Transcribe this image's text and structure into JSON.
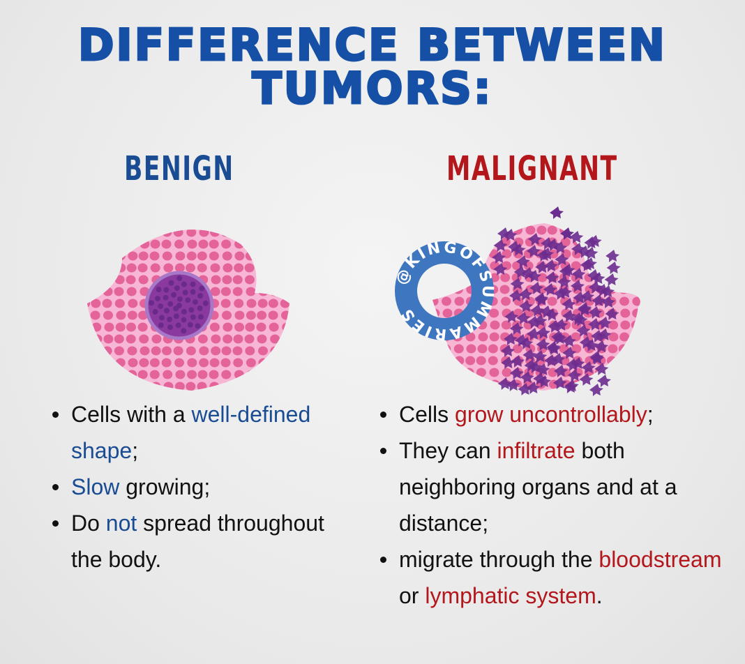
{
  "title": {
    "line1": "DIFFERENCE BETWEEN",
    "line2": "TUMORS:"
  },
  "colors": {
    "title": "#1650a6",
    "benign": "#1a4c94",
    "malignant": "#b3161b",
    "cell": "#e0568f",
    "tissue": "#f7b6d4",
    "nucleus": "#6a2a8c"
  },
  "benign": {
    "heading": "BENIGN",
    "bullets": [
      [
        {
          "t": "Cells with a "
        },
        {
          "t": "well-defined shape",
          "hl": true
        },
        {
          "t": ";"
        }
      ],
      [
        {
          "t": "Slow",
          "hl": true
        },
        {
          "t": " growing;"
        }
      ],
      [
        {
          "t": "Do "
        },
        {
          "t": "not",
          "hl": true
        },
        {
          "t": " spread throughout the body."
        }
      ]
    ]
  },
  "malignant": {
    "heading": "MALIGNANT",
    "bullets": [
      [
        {
          "t": "Cells "
        },
        {
          "t": "grow uncontrollably",
          "hl": true
        },
        {
          "t": ";"
        }
      ],
      [
        {
          "t": "They can "
        },
        {
          "t": "infiltrate",
          "hl": true
        },
        {
          "t": " both neighboring organs and at a distance;"
        }
      ],
      [
        {
          "t": "migrate through the "
        },
        {
          "t": "bloodstream",
          "hl": true
        },
        {
          "t": " or "
        },
        {
          "t": "lymphatic system",
          "hl": true
        },
        {
          "t": "."
        }
      ]
    ]
  },
  "watermark": "@KINGOFSUMMARIES"
}
